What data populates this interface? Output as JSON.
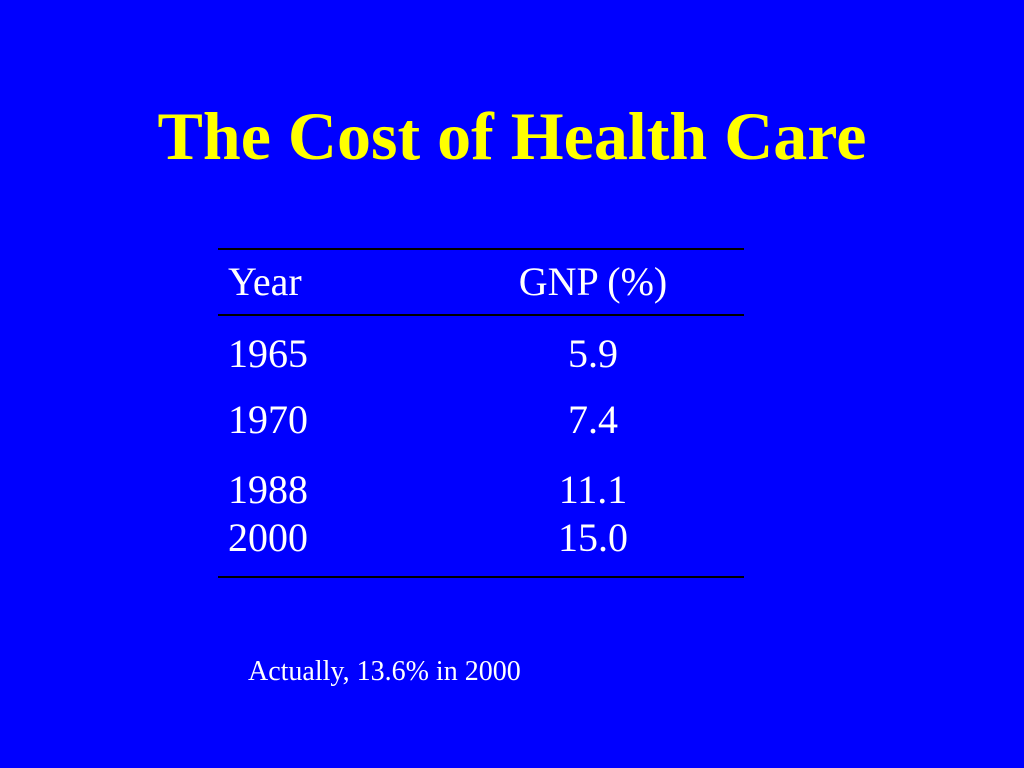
{
  "slide": {
    "title": "The Cost of Health Care",
    "footnote": "Actually, 13.6% in 2000"
  },
  "table": {
    "headers": {
      "year": "Year",
      "gnp": "GNP (%)"
    },
    "rows": [
      {
        "year": "1965",
        "gnp": "5.9"
      },
      {
        "year": "1970",
        "gnp": "7.4"
      },
      {
        "year": "1988",
        "gnp": "11.1"
      },
      {
        "year": "2000",
        "gnp": "15.0"
      }
    ]
  },
  "colors": {
    "background": "#0000ff",
    "title": "#ffff00",
    "text": "#ffffff",
    "rules": "#000000"
  }
}
